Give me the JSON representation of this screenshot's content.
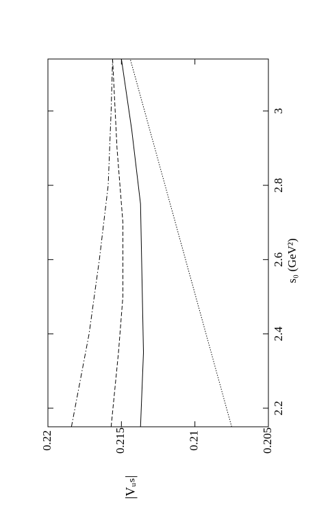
{
  "chart_data": {
    "type": "line",
    "x_label": "s₀ (GeV²)",
    "y_label": "|Vᵤₛ|",
    "xlim": [
      2.15,
      3.14
    ],
    "xticks": [
      2.2,
      2.4,
      2.6,
      2.8,
      3
    ],
    "ylim": [
      0.205,
      0.22
    ],
    "yticks": [
      0.205,
      0.21,
      0.215,
      0.22
    ],
    "grid": false,
    "series": [
      {
        "color": "#000000",
        "dash": "solid",
        "x": [
          2.15,
          2.35,
          2.55,
          2.75,
          2.95,
          3.14
        ],
        "values": [
          0.2137,
          0.2135,
          0.2136,
          0.2137,
          0.2143,
          0.215
        ]
      },
      {
        "color": "#000000",
        "dash": "dashed",
        "x": [
          2.15,
          2.35,
          2.5,
          2.7,
          2.9,
          3.14
        ],
        "values": [
          0.2157,
          0.2152,
          0.2149,
          0.2149,
          0.2153,
          0.2156
        ]
      },
      {
        "color": "#000000",
        "dash": "dashdot",
        "x": [
          2.15,
          2.4,
          2.6,
          2.8,
          3.0,
          3.14
        ],
        "values": [
          0.2184,
          0.2172,
          0.2165,
          0.2159,
          0.2157,
          0.2156
        ]
      },
      {
        "color": "#000000",
        "dash": "dotted",
        "x": [
          2.15,
          3.14
        ],
        "values": [
          0.2075,
          0.2144
        ]
      }
    ]
  }
}
